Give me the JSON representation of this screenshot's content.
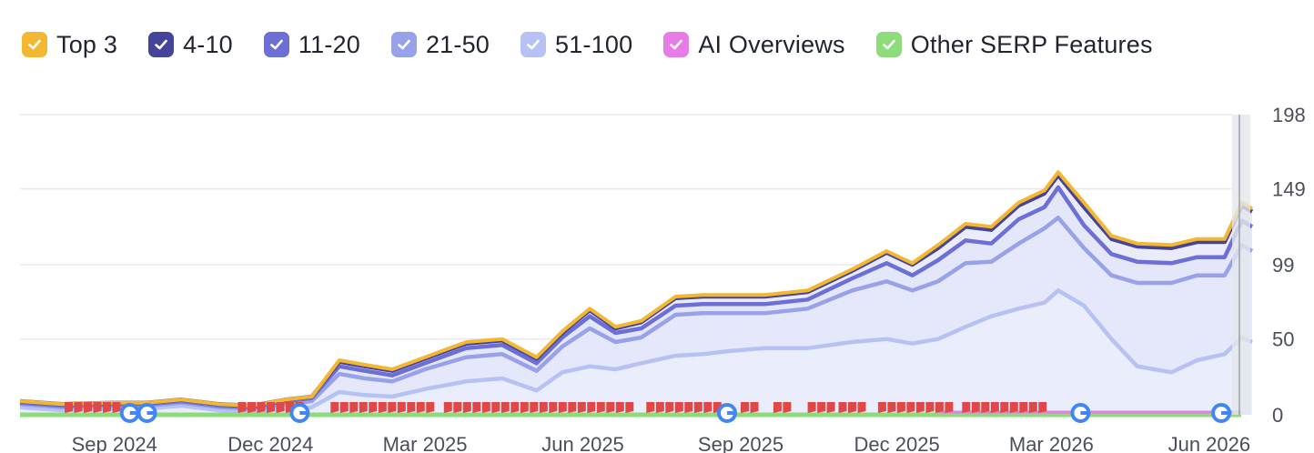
{
  "legend": [
    {
      "label": "Top 3",
      "color": "#f4b731"
    },
    {
      "label": "4-10",
      "color": "#45449b"
    },
    {
      "label": "11-20",
      "color": "#6b6fd6"
    },
    {
      "label": "21-50",
      "color": "#97a2ea"
    },
    {
      "label": "51-100",
      "color": "#b7c2f4"
    },
    {
      "label": "AI Overviews",
      "color": "#e67ce8"
    },
    {
      "label": "Other SERP Features",
      "color": "#8ddc7a"
    }
  ],
  "chart_data": {
    "type": "area",
    "title": "",
    "xlabel": "",
    "ylabel": "",
    "y_axis_position": "right",
    "ylim": [
      0,
      198
    ],
    "yticks": [
      "198",
      "149",
      "99",
      "50",
      "0"
    ],
    "ytick_values": [
      198,
      149,
      99,
      50,
      0
    ],
    "xtick_labels": [
      "Sep 2024",
      "Dec 2024",
      "Mar 2025",
      "Jun 2025",
      "Sep 2025",
      "Dec 2025",
      "Mar 2026",
      "Jun 2026"
    ],
    "xtick_dates": [
      "2024-09-01",
      "2024-12-01",
      "2025-03-01",
      "2025-06-01",
      "2025-09-01",
      "2025-12-01",
      "2026-03-01",
      "2026-06-01"
    ],
    "x_range": [
      "2024-07-08",
      "2026-06-26"
    ],
    "grid": true,
    "legend_position": "top-left",
    "stacking": "cumulative",
    "x": [
      "2024-07-08",
      "2024-08-01",
      "2024-09-01",
      "2024-09-20",
      "2024-10-10",
      "2024-11-01",
      "2024-11-20",
      "2024-12-10",
      "2024-12-25",
      "2025-01-10",
      "2025-01-25",
      "2025-02-10",
      "2025-03-01",
      "2025-03-25",
      "2025-04-15",
      "2025-05-05",
      "2025-05-20",
      "2025-06-05",
      "2025-06-20",
      "2025-07-05",
      "2025-07-25",
      "2025-08-10",
      "2025-08-25",
      "2025-09-15",
      "2025-10-10",
      "2025-11-05",
      "2025-11-25",
      "2025-12-10",
      "2025-12-25",
      "2026-01-10",
      "2026-01-25",
      "2026-02-10",
      "2026-02-25",
      "2026-03-05",
      "2026-03-20",
      "2026-04-05",
      "2026-04-20",
      "2026-05-10",
      "2026-05-25",
      "2026-06-10",
      "2026-06-20",
      "2026-06-26"
    ],
    "totals": {
      "Top 3": [
        9,
        7,
        8,
        8,
        10,
        7,
        6,
        10,
        12,
        36,
        33,
        30,
        38,
        48,
        50,
        38,
        55,
        70,
        58,
        62,
        78,
        79,
        79,
        79,
        82,
        96,
        108,
        100,
        112,
        126,
        124,
        140,
        148,
        160,
        140,
        118,
        113,
        112,
        116,
        116,
        140,
        136
      ],
      "4-10": [
        9,
        7,
        8,
        8,
        10,
        7,
        6,
        10,
        12,
        35,
        32,
        29,
        37,
        47,
        49,
        37,
        54,
        69,
        57,
        61,
        77,
        78,
        78,
        78,
        81,
        95,
        107,
        99,
        110,
        124,
        122,
        138,
        146,
        158,
        137,
        116,
        111,
        110,
        114,
        114,
        138,
        134
      ],
      "11-20": [
        8,
        6,
        7,
        7,
        9,
        6,
        5,
        9,
        11,
        32,
        29,
        26,
        34,
        44,
        46,
        34,
        51,
        65,
        54,
        57,
        72,
        73,
        73,
        73,
        76,
        90,
        100,
        92,
        102,
        115,
        113,
        129,
        137,
        150,
        125,
        106,
        101,
        100,
        104,
        104,
        128,
        124
      ],
      "21-50": [
        7,
        5,
        6,
        6,
        8,
        5,
        4,
        7,
        9,
        27,
        24,
        22,
        30,
        38,
        40,
        29,
        45,
        57,
        48,
        51,
        66,
        67,
        67,
        67,
        70,
        82,
        88,
        82,
        88,
        100,
        101,
        113,
        123,
        130,
        110,
        92,
        87,
        87,
        92,
        92,
        112,
        108
      ],
      "51-100": [
        5,
        3,
        4,
        4,
        6,
        3,
        2,
        4,
        5,
        15,
        13,
        12,
        17,
        22,
        24,
        16,
        28,
        32,
        30,
        34,
        39,
        40,
        42,
        44,
        44,
        48,
        50,
        47,
        50,
        58,
        65,
        70,
        74,
        82,
        72,
        50,
        32,
        28,
        36,
        40,
        51,
        48
      ],
      "AI Overviews": [
        0,
        0,
        0,
        0,
        0,
        0,
        0,
        0,
        0,
        0,
        0,
        0,
        0,
        0,
        0,
        0,
        0,
        0,
        0,
        0,
        0,
        0,
        0,
        0,
        0,
        0,
        0,
        0,
        0,
        0,
        0,
        0,
        0,
        0,
        0,
        0,
        0,
        0,
        0,
        0,
        0,
        0
      ],
      "Other SERP Features": [
        0,
        0,
        0,
        0,
        0,
        0,
        0,
        0,
        0,
        0,
        0,
        0,
        0,
        0,
        0,
        0,
        0,
        0,
        0,
        0,
        0,
        0,
        0,
        0,
        0,
        0,
        0,
        0,
        0,
        0,
        0,
        0,
        0,
        0,
        0,
        0,
        0,
        0,
        0,
        0,
        0,
        0
      ]
    }
  }
}
